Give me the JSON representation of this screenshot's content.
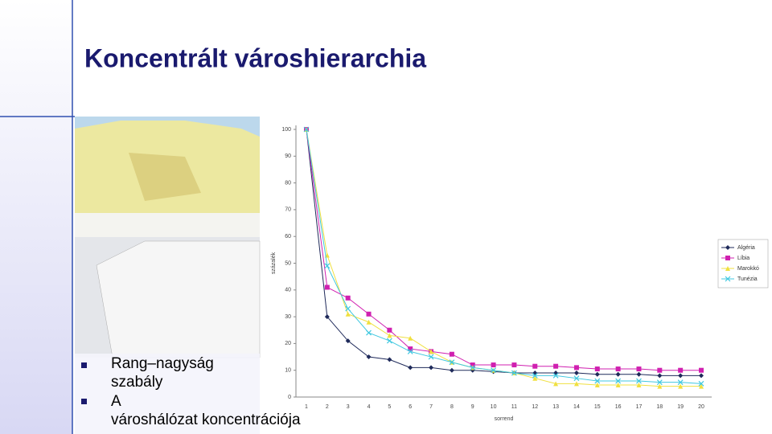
{
  "title": "Koncentrált városhierarchia",
  "bullets": [
    "Rang–nagyság szabály",
    "A városhálózat koncentrációja"
  ],
  "chart_data": {
    "type": "line",
    "categories": [
      "1",
      "2",
      "3",
      "4",
      "5",
      "6",
      "7",
      "8",
      "9",
      "10",
      "11",
      "12",
      "13",
      "14",
      "15",
      "16",
      "17",
      "18",
      "19",
      "20"
    ],
    "ylabel": "százalék",
    "xlabel": "sorrend",
    "ylim": [
      0,
      100
    ],
    "yticks": [
      0,
      10,
      20,
      30,
      40,
      50,
      60,
      70,
      80,
      90,
      100
    ],
    "legend": "right",
    "series": [
      {
        "name": "Algéria",
        "color": "#1f2a5a",
        "marker": "diamond",
        "values": [
          100,
          30,
          21,
          15,
          14,
          11,
          11,
          10,
          10,
          9.5,
          9,
          9,
          9,
          9,
          8.5,
          8.5,
          8.5,
          8,
          8,
          8
        ]
      },
      {
        "name": "Líbia",
        "color": "#d020b0",
        "marker": "square",
        "values": [
          100,
          41,
          37,
          31,
          25,
          18,
          17,
          16,
          12,
          12,
          12,
          11.5,
          11.5,
          11,
          10.5,
          10.5,
          10.5,
          10,
          10,
          10
        ]
      },
      {
        "name": "Marokkó",
        "color": "#f0e040",
        "marker": "triangle",
        "values": [
          100,
          53,
          31,
          28,
          23,
          22,
          17,
          13,
          11,
          10,
          9,
          7,
          5,
          5,
          4.5,
          4.5,
          4.5,
          4,
          4,
          4
        ]
      },
      {
        "name": "Tunézia",
        "color": "#40c8e0",
        "marker": "x",
        "values": [
          100,
          49,
          33,
          24,
          21,
          17,
          15,
          13,
          11,
          10,
          9,
          8,
          8,
          7,
          6,
          6,
          6,
          5.5,
          5.5,
          5
        ]
      }
    ]
  }
}
